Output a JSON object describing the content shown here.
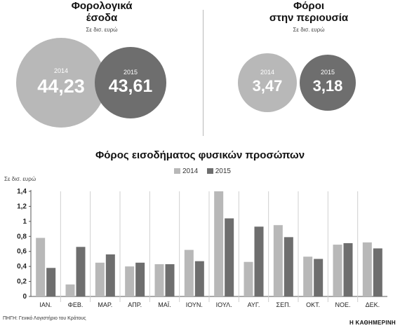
{
  "panels": [
    {
      "title_line1": "Φορολογικά",
      "title_line2": "έσοδα",
      "unit": "Σε δισ. ευρώ",
      "circles": [
        {
          "year": "2014",
          "value": "44,23",
          "color": "#b8b8b8"
        },
        {
          "year": "2015",
          "value": "43,61",
          "color": "#6e6e6e"
        }
      ]
    },
    {
      "title_line1": "Φόροι",
      "title_line2": "στην περιουσία",
      "unit": "Σε δισ. ευρώ",
      "circles": [
        {
          "year": "2014",
          "value": "3,47",
          "color": "#b8b8b8"
        },
        {
          "year": "2015",
          "value": "3,18",
          "color": "#6e6e6e"
        }
      ]
    }
  ],
  "chart_data": {
    "type": "bar",
    "title": "Φόρος εισοδήματος φυσικών προσώπων",
    "ylabel": "Σε δισ. ευρώ",
    "categories": [
      "ΙΑΝ.",
      "ΦΕΒ.",
      "ΜΑΡ.",
      "ΑΠΡ.",
      "ΜΑΪ.",
      "ΙΟΥΝ.",
      "ΙΟΥΛ.",
      "ΑΥΓ.",
      "ΣΕΠ.",
      "ΟΚΤ.",
      "ΝΟΕ.",
      "ΔΕΚ."
    ],
    "series": [
      {
        "name": "2014",
        "color": "#b8b8b8",
        "values": [
          0.78,
          0.16,
          0.45,
          0.4,
          0.43,
          0.62,
          1.4,
          0.46,
          0.95,
          0.53,
          0.69,
          0.72
        ]
      },
      {
        "name": "2015",
        "color": "#6e6e6e",
        "values": [
          0.38,
          0.66,
          0.56,
          0.45,
          0.43,
          0.47,
          1.04,
          0.93,
          0.79,
          0.5,
          0.71,
          0.64
        ]
      }
    ],
    "yticks": [
      "0",
      "0,2",
      "0,4",
      "0,6",
      "0,8",
      "1",
      "1,2",
      "1,4"
    ],
    "ylim": [
      0,
      1.4
    ],
    "grid": false,
    "legend": "top"
  },
  "footer": {
    "source": "ΠΗΓΗ: Γενικό Λογιστήριο του Κράτους",
    "brand": "Η ΚΑΘΗΜΕΡΙΝΗ"
  }
}
